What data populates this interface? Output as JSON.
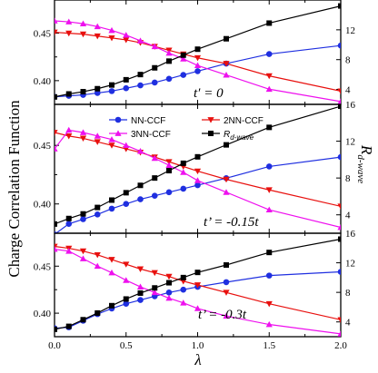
{
  "chart_data": {
    "type": "line",
    "xlabel": "λ",
    "ylabel_left": "Charge Correlation Function",
    "ylabel_right_main": "R",
    "ylabel_right_sub": "d-wave",
    "xlim": [
      0,
      2
    ],
    "x_ticks": [
      "0.0",
      "0.5",
      "1.0",
      "1.5",
      "2.0"
    ],
    "x_tick_values": [
      0,
      0.5,
      1,
      1.5,
      2
    ],
    "legend": [
      {
        "name": "NN-CCF",
        "color": "#1f2fe0",
        "marker": "circle"
      },
      {
        "name": "2NN-CCF",
        "color": "#e8100e",
        "marker": "triangle-down"
      },
      {
        "name": "3NN-CCF",
        "color": "#ee10ee",
        "marker": "triangle-up"
      },
      {
        "name_main": "R",
        "name_sub": "d-wave",
        "color": "#000000",
        "marker": "square"
      }
    ],
    "x": [
      0,
      0.1,
      0.2,
      0.3,
      0.4,
      0.5,
      0.6,
      0.7,
      0.8,
      0.9,
      1.0,
      1.2,
      1.5,
      2.0
    ],
    "panels": [
      {
        "annotation": "t′ = 0",
        "ylim_left": [
          0.375,
          0.485
        ],
        "yticks_left": [
          0.4,
          0.45
        ],
        "ytick_labels_left": [
          "0.40",
          "0.45"
        ],
        "ylim_right": [
          2,
          16
        ],
        "yticks_right": [
          4,
          8,
          12
        ],
        "ytick_labels_right": [
          "4",
          "8",
          "12"
        ],
        "series": [
          {
            "values": [
              0.383,
              0.384,
              0.385,
              0.387,
              0.389,
              0.392,
              0.395,
              0.398,
              0.402,
              0.406,
              0.41,
              0.418,
              0.428,
              0.437
            ]
          },
          {
            "values": [
              0.451,
              0.45,
              0.449,
              0.447,
              0.445,
              0.443,
              0.44,
              0.436,
              0.432,
              0.428,
              0.424,
              0.418,
              0.405,
              0.389
            ]
          },
          {
            "values": [
              0.463,
              0.462,
              0.46,
              0.457,
              0.453,
              0.448,
              0.442,
              0.436,
              0.429,
              0.423,
              0.416,
              0.406,
              0.391,
              0.378
            ]
          },
          {
            "values": [
              3.0,
              3.4,
              3.7,
              4.1,
              4.6,
              5.3,
              6.0,
              6.9,
              7.8,
              8.6,
              9.4,
              10.8,
              12.9,
              15.2
            ]
          }
        ]
      },
      {
        "annotation": "t’ = -0.15t",
        "ylim_left": [
          0.375,
          0.485
        ],
        "yticks_left": [
          0.4,
          0.45
        ],
        "ytick_labels_left": [
          "0.40",
          "0.45"
        ],
        "ylim_right": [
          2,
          16
        ],
        "yticks_right": [
          4,
          8,
          12,
          16
        ],
        "ytick_labels_right": [
          "4",
          "8",
          "12",
          "16"
        ],
        "series": [
          {
            "values": [
              0.374,
              0.383,
              0.387,
              0.391,
              0.396,
              0.4,
              0.404,
              0.407,
              0.41,
              0.413,
              0.416,
              0.422,
              0.432,
              0.44
            ]
          },
          {
            "values": [
              0.461,
              0.458,
              0.456,
              0.453,
              0.45,
              0.447,
              0.444,
              0.44,
              0.436,
              0.432,
              0.428,
              0.421,
              0.412,
              0.398
            ]
          },
          {
            "values": [
              0.447,
              0.463,
              0.461,
              0.458,
              0.455,
              0.45,
              0.445,
              0.439,
              0.433,
              0.427,
              0.42,
              0.41,
              0.395,
              0.38
            ]
          },
          {
            "values": [
              3.0,
              3.6,
              4.1,
              4.8,
              5.6,
              6.4,
              7.2,
              8.0,
              8.8,
              9.6,
              10.3,
              11.6,
              13.5,
              15.8
            ]
          }
        ]
      },
      {
        "annotation": "t’ = -0.3t",
        "ylim_left": [
          0.375,
          0.485
        ],
        "yticks_left": [
          0.4,
          0.45
        ],
        "ytick_labels_left": [
          "0.40",
          "0.45"
        ],
        "ylim_right": [
          2,
          16
        ],
        "yticks_right": [
          4,
          8,
          12,
          16
        ],
        "ytick_labels_right": [
          "4",
          "8",
          "12",
          "16"
        ],
        "series": [
          {
            "values": [
              0.384,
              0.385,
              0.392,
              0.399,
              0.405,
              0.41,
              0.414,
              0.418,
              0.422,
              0.425,
              0.428,
              0.433,
              0.44,
              0.444
            ]
          },
          {
            "values": [
              0.471,
              0.469,
              0.466,
              0.462,
              0.457,
              0.452,
              0.447,
              0.443,
              0.439,
              0.434,
              0.43,
              0.422,
              0.41,
              0.393
            ]
          },
          {
            "values": [
              0.468,
              0.466,
              0.458,
              0.45,
              0.443,
              0.435,
              0.428,
              0.422,
              0.416,
              0.411,
              0.405,
              0.397,
              0.388,
              0.378
            ]
          },
          {
            "values": [
              3.0,
              3.4,
              4.3,
              5.2,
              6.2,
              7.1,
              7.9,
              8.6,
              9.3,
              10.0,
              10.7,
              11.7,
              13.4,
              15.2
            ]
          }
        ]
      }
    ]
  }
}
